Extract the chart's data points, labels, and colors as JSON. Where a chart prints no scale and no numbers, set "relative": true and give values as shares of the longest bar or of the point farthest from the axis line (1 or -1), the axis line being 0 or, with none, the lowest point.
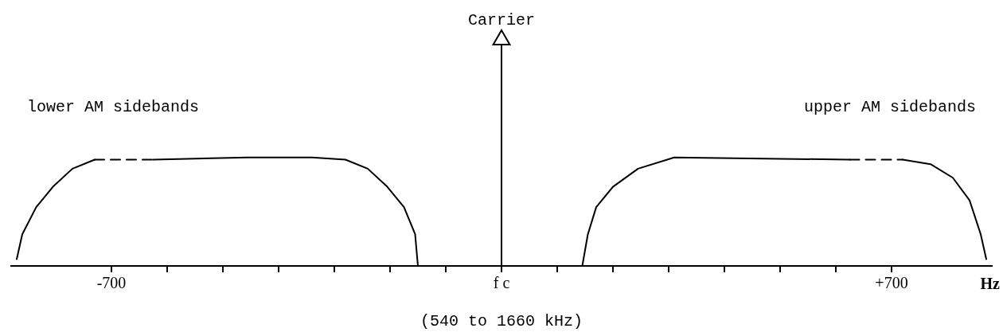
{
  "chart_data": {
    "type": "line",
    "relative": true,
    "xlabel": "Hz",
    "xlim": [
      -880,
      880
    ],
    "xticks": [
      {
        "value": -700,
        "label": "-700"
      },
      {
        "value": -600,
        "label": null
      },
      {
        "value": -500,
        "label": null
      },
      {
        "value": -400,
        "label": null
      },
      {
        "value": -300,
        "label": null
      },
      {
        "value": -200,
        "label": null
      },
      {
        "value": -100,
        "label": null
      },
      {
        "value": 0,
        "label": "f c"
      },
      {
        "value": 100,
        "label": null
      },
      {
        "value": 200,
        "label": null
      },
      {
        "value": 300,
        "label": null
      },
      {
        "value": 400,
        "label": null
      },
      {
        "value": 500,
        "label": null
      },
      {
        "value": 600,
        "label": null
      },
      {
        "value": 700,
        "label": "+700"
      }
    ],
    "grid": false,
    "legend": false,
    "marker": "none",
    "line_style": "solid",
    "series": [
      {
        "color": "#000000",
        "x": [
          -870,
          -860,
          -835,
          -805,
          -770,
          -730
        ],
        "values": [
          0.03,
          0.14,
          0.26,
          0.35,
          0.43,
          0.47
        ]
      },
      {
        "color": "#000000",
        "line_style": "dashed",
        "x": [
          -730,
          -625
        ],
        "values": [
          0.47,
          0.47
        ]
      },
      {
        "color": "#000000",
        "x": [
          -625,
          -455,
          -340,
          -280,
          -240,
          -205,
          -175,
          -155,
          -150
        ],
        "values": [
          0.47,
          0.48,
          0.48,
          0.47,
          0.43,
          0.35,
          0.26,
          0.14,
          0
        ]
      },
      {
        "color": "#000000",
        "x": [
          145,
          155,
          170,
          200,
          245,
          310,
          625
        ],
        "values": [
          0,
          0.14,
          0.26,
          0.35,
          0.43,
          0.48,
          0.47
        ]
      },
      {
        "color": "#000000",
        "line_style": "dashed",
        "x": [
          625,
          720
        ],
        "values": [
          0.47,
          0.47
        ]
      },
      {
        "color": "#000000",
        "x": [
          720,
          770,
          810,
          840,
          860,
          870
        ],
        "values": [
          0.47,
          0.45,
          0.39,
          0.29,
          0.14,
          0.03
        ]
      },
      {
        "color": "#000000",
        "marker": "triangle",
        "x": [
          0,
          0
        ],
        "values": [
          0,
          1
        ]
      }
    ],
    "annotations": [
      "lower AM sidebands",
      "upper AM sidebands",
      {
        "text": "Carrier",
        "x": 0,
        "y": 1
      },
      "(540 to 1660 kHz)"
    ]
  }
}
